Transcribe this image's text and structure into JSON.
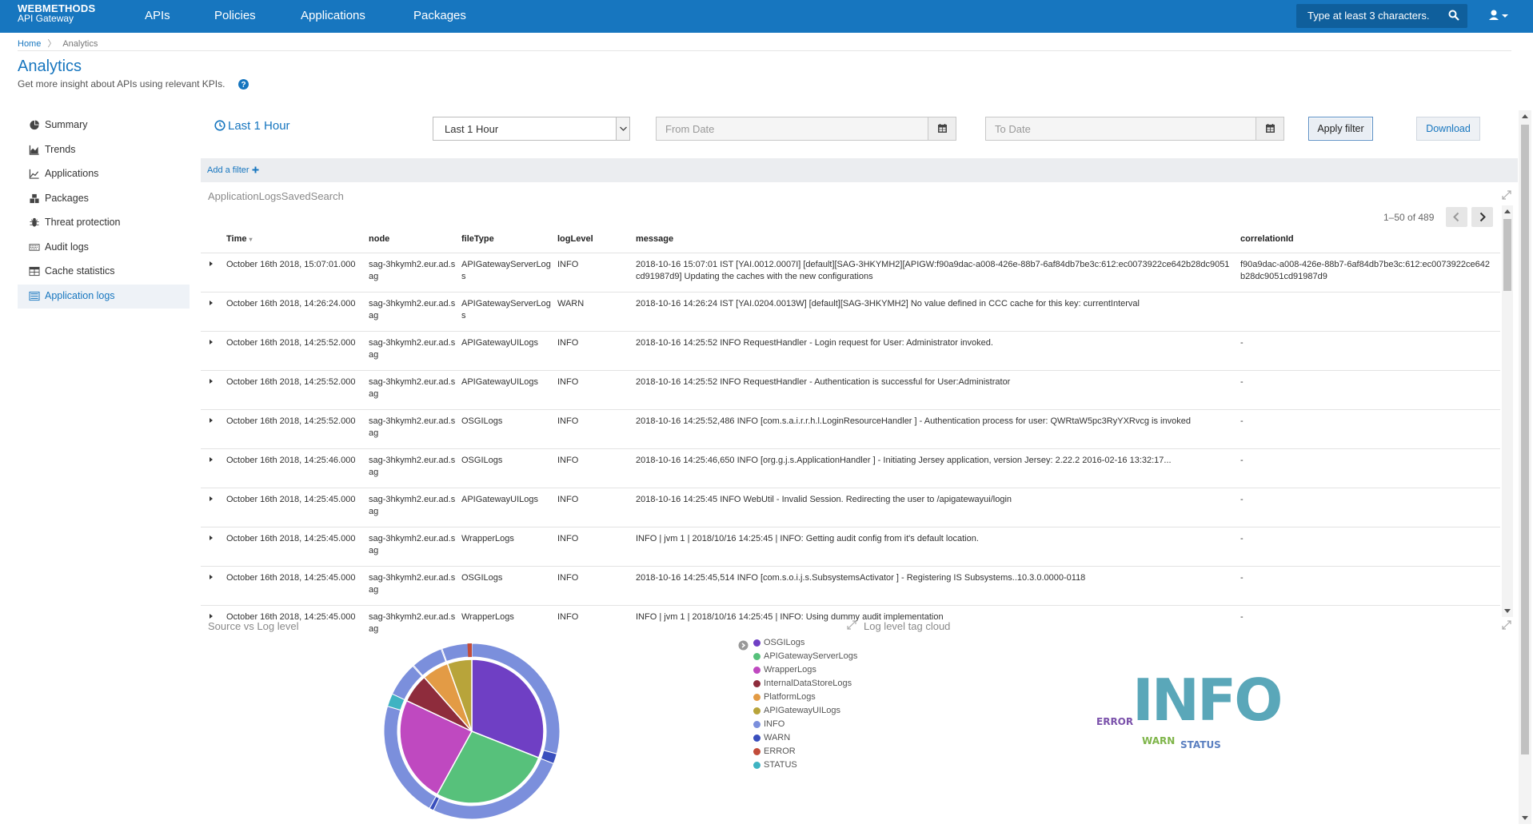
{
  "brand": {
    "name": "WEBMETHODS",
    "product": "API Gateway"
  },
  "nav": [
    "APIs",
    "Policies",
    "Applications",
    "Packages"
  ],
  "search": {
    "placeholder": "Type at least 3 characters."
  },
  "breadcrumb": {
    "home": "Home",
    "current": "Analytics"
  },
  "header": {
    "title": "Analytics",
    "subtitle": "Get more insight about APIs using relevant KPIs."
  },
  "sidebar": [
    {
      "label": "Summary",
      "icon": "pie-chart-icon"
    },
    {
      "label": "Trends",
      "icon": "area-chart-icon"
    },
    {
      "label": "Applications",
      "icon": "line-chart-icon"
    },
    {
      "label": "Packages",
      "icon": "cubes-icon"
    },
    {
      "label": "Threat protection",
      "icon": "bug-icon"
    },
    {
      "label": "Audit logs",
      "icon": "keyboard-icon"
    },
    {
      "label": "Cache statistics",
      "icon": "table-icon"
    },
    {
      "label": "Application logs",
      "icon": "list-icon",
      "active": true
    }
  ],
  "filter": {
    "time_label": "Last 1 Hour",
    "range_value": "Last 1 Hour",
    "from_placeholder": "From Date",
    "to_placeholder": "To Date",
    "apply_label": "Apply filter",
    "download_label": "Download",
    "add_filter_label": "Add a filter"
  },
  "logs_panel": {
    "title": "ApplicationLogsSavedSearch",
    "pager": "1–50 of 489",
    "columns": [
      "Time",
      "node",
      "fileType",
      "logLevel",
      "message",
      "correlationId"
    ],
    "rows": [
      {
        "time": "October 16th 2018, 15:07:01.000",
        "node": "sag-3hkymh2.eur.ad.sag",
        "fileType": "APIGatewayServerLogs",
        "logLevel": "INFO",
        "message": "2018-10-16 15:07:01 IST [YAI.0012.0007I] [default][SAG-3HKYMH2][APIGW:f90a9dac-a008-426e-88b7-6af84db7be3c:612:ec0073922ce642b28dc9051cd91987d9]  Updating the caches with the new configurations",
        "correlationId": "f90a9dac-a008-426e-88b7-6af84db7be3c:612:ec0073922ce642b28dc9051cd91987d9"
      },
      {
        "time": "October 16th 2018, 14:26:24.000",
        "node": "sag-3hkymh2.eur.ad.sag",
        "fileType": "APIGatewayServerLogs",
        "logLevel": "WARN",
        "message": "2018-10-16 14:26:24 IST [YAI.0204.0013W] [default][SAG-3HKYMH2]  No value defined in CCC cache for this key: currentInterval",
        "correlationId": ""
      },
      {
        "time": "October 16th 2018, 14:25:52.000",
        "node": "sag-3hkymh2.eur.ad.sag",
        "fileType": "APIGatewayUILogs",
        "logLevel": "INFO",
        "message": "2018-10-16 14:25:52 INFO  RequestHandler - Login request for User: Administrator invoked.",
        "correlationId": "-"
      },
      {
        "time": "October 16th 2018, 14:25:52.000",
        "node": "sag-3hkymh2.eur.ad.sag",
        "fileType": "APIGatewayUILogs",
        "logLevel": "INFO",
        "message": "2018-10-16 14:25:52 INFO  RequestHandler - Authentication is successful for User:Administrator",
        "correlationId": "-"
      },
      {
        "time": "October 16th 2018, 14:25:52.000",
        "node": "sag-3hkymh2.eur.ad.sag",
        "fileType": "OSGILogs",
        "logLevel": "INFO",
        "message": "2018-10-16 14:25:52,486 INFO  [com.s.a.i.r.r.h.l.LoginResourceHandler                ] - Authentication process for user: QWRtaW5pc3RyYXRvcg is invoked",
        "correlationId": "-"
      },
      {
        "time": "October 16th 2018, 14:25:46.000",
        "node": "sag-3hkymh2.eur.ad.sag",
        "fileType": "OSGILogs",
        "logLevel": "INFO",
        "message": "2018-10-16 14:25:46,650 INFO  [org.g.j.s.ApplicationHandler                       ] - Initiating Jersey application, version Jersey: 2.22.2 2016-02-16 13:32:17...",
        "correlationId": "-"
      },
      {
        "time": "October 16th 2018, 14:25:45.000",
        "node": "sag-3hkymh2.eur.ad.sag",
        "fileType": "APIGatewayUILogs",
        "logLevel": "INFO",
        "message": "2018-10-16 14:25:45 INFO  WebUtil - Invalid Session. Redirecting the user to /apigatewayui/login",
        "correlationId": "-"
      },
      {
        "time": "October 16th 2018, 14:25:45.000",
        "node": "sag-3hkymh2.eur.ad.sag",
        "fileType": "WrapperLogs",
        "logLevel": "INFO",
        "message": "INFO   | jvm 1    | 2018/10/16 14:25:45 | INFO: Getting audit  config from it's default location.",
        "correlationId": "-"
      },
      {
        "time": "October 16th 2018, 14:25:45.000",
        "node": "sag-3hkymh2.eur.ad.sag",
        "fileType": "OSGILogs",
        "logLevel": "INFO",
        "message": "2018-10-16 14:25:45,514 INFO  [com.s.o.i.j.s.SubsystemsActivator                    ] - Registering IS Subsystems..10.3.0.0000-0118",
        "correlationId": "-"
      },
      {
        "time": "October 16th 2018, 14:25:45.000",
        "node": "sag-3hkymh2.eur.ad.sag",
        "fileType": "WrapperLogs",
        "logLevel": "INFO",
        "message": "INFO   | jvm 1    | 2018/10/16 14:25:45 | INFO: Using dummy audit implementation",
        "correlationId": "-"
      }
    ]
  },
  "source_panel": {
    "title": "Source vs Log level"
  },
  "tagcloud_panel": {
    "title": "Log level tag cloud",
    "tags": [
      {
        "text": "INFO",
        "color": "#5aa7b9"
      },
      {
        "text": "ERROR",
        "color": "#7b52ab"
      },
      {
        "text": "WARN",
        "color": "#7fb54a"
      },
      {
        "text": "STATUS",
        "color": "#5a7fc0"
      }
    ]
  },
  "legend": [
    {
      "label": "OSGILogs",
      "color": "#6f3fc4"
    },
    {
      "label": "APIGatewayServerLogs",
      "color": "#57c17b"
    },
    {
      "label": "WrapperLogs",
      "color": "#bf49c0"
    },
    {
      "label": "InternalDataStoreLogs",
      "color": "#8e2c3c"
    },
    {
      "label": "PlatformLogs",
      "color": "#e39b45"
    },
    {
      "label": "APIGatewayUILogs",
      "color": "#b8a43a"
    },
    {
      "label": "INFO",
      "color": "#7b8fdc"
    },
    {
      "label": "WARN",
      "color": "#3a4fbd"
    },
    {
      "label": "ERROR",
      "color": "#c24c3a"
    },
    {
      "label": "STATUS",
      "color": "#3fb3c2"
    }
  ],
  "chart_data": {
    "type": "pie",
    "inner": [
      {
        "name": "OSGILogs",
        "value": 0.31
      },
      {
        "name": "APIGatewayServerLogs",
        "value": 0.27
      },
      {
        "name": "WrapperLogs",
        "value": 0.24
      },
      {
        "name": "InternalDataStoreLogs",
        "value": 0.065
      },
      {
        "name": "PlatformLogs",
        "value": 0.06
      },
      {
        "name": "APIGatewayUILogs",
        "value": 0.055
      }
    ],
    "outer_note": "Outer ring splits each source by log level (mostly INFO, small WARN / ERROR / STATUS)"
  }
}
